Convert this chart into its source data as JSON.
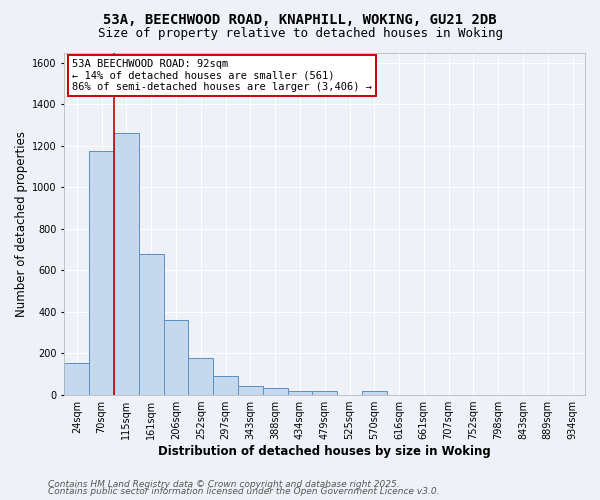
{
  "title_line1": "53A, BEECHWOOD ROAD, KNAPHILL, WOKING, GU21 2DB",
  "title_line2": "Size of property relative to detached houses in Woking",
  "xlabel": "Distribution of detached houses by size in Woking",
  "ylabel": "Number of detached properties",
  "footnote1": "Contains HM Land Registry data © Crown copyright and database right 2025.",
  "footnote2": "Contains public sector information licensed under the Open Government Licence v3.0.",
  "categories": [
    "24sqm",
    "70sqm",
    "115sqm",
    "161sqm",
    "206sqm",
    "252sqm",
    "297sqm",
    "343sqm",
    "388sqm",
    "434sqm",
    "479sqm",
    "525sqm",
    "570sqm",
    "616sqm",
    "661sqm",
    "707sqm",
    "752sqm",
    "798sqm",
    "843sqm",
    "889sqm",
    "934sqm"
  ],
  "values": [
    152,
    1175,
    1260,
    680,
    362,
    175,
    88,
    40,
    30,
    18,
    15,
    0,
    15,
    0,
    0,
    0,
    0,
    0,
    0,
    0,
    0
  ],
  "bar_color": "#c5d8ed",
  "bar_edge_color": "#5b8fc9",
  "bar_edge_width": 0.7,
  "background_color": "#eef2f8",
  "grid_color": "#ffffff",
  "property_line_x": 1.48,
  "annotation_text": "53A BEECHWOOD ROAD: 92sqm\n← 14% of detached houses are smaller (561)\n86% of semi-detached houses are larger (3,406) →",
  "annotation_box_color": "#ffffff",
  "annotation_box_edge_color": "#cc0000",
  "red_line_color": "#cc0000",
  "ylim": [
    0,
    1650
  ],
  "yticks": [
    0,
    200,
    400,
    600,
    800,
    1000,
    1200,
    1400,
    1600
  ],
  "title_fontsize": 10,
  "subtitle_fontsize": 9,
  "axis_label_fontsize": 8.5,
  "tick_fontsize": 7,
  "annotation_fontsize": 7.5,
  "footnote_fontsize": 6.5
}
